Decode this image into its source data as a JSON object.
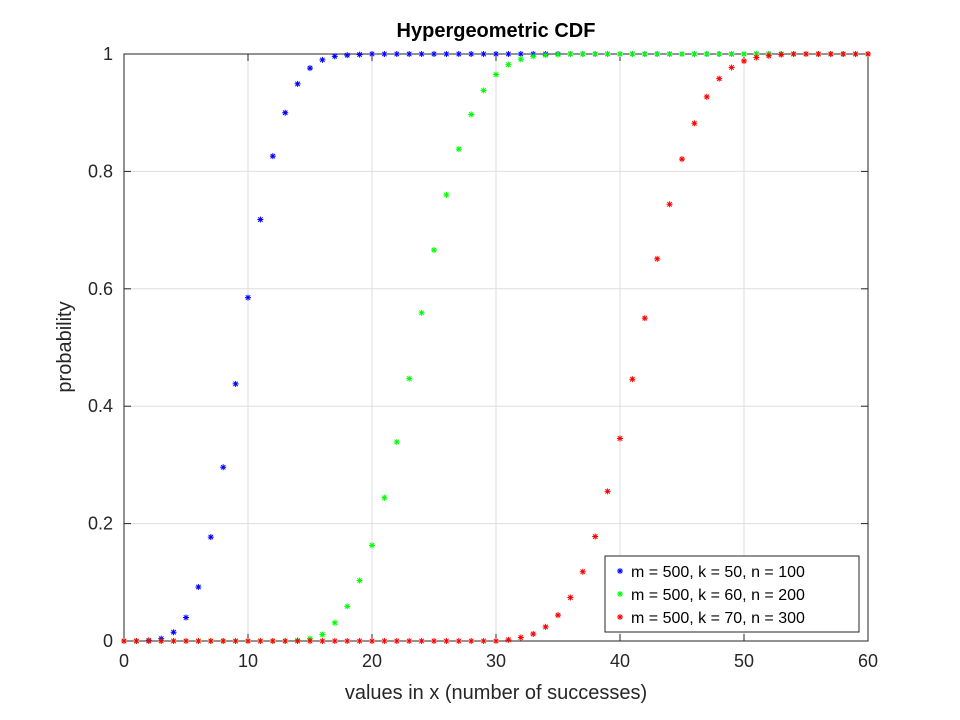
{
  "chart_data": {
    "type": "scatter",
    "title": "Hypergeometric CDF",
    "xlabel": "values in x (number of successes)",
    "ylabel": "probability",
    "xlim": [
      0,
      60
    ],
    "ylim": [
      0,
      1
    ],
    "xticks": [
      0,
      10,
      20,
      30,
      40,
      50,
      60
    ],
    "yticks": [
      0,
      0.2,
      0.4,
      0.6,
      0.8,
      1
    ],
    "ytick_labels": [
      "0",
      "0.2",
      "0.4",
      "0.6",
      "0.8",
      "1"
    ],
    "grid": true,
    "legend_position": "bottom-right",
    "marker": "*",
    "x": [
      0,
      1,
      2,
      3,
      4,
      5,
      6,
      7,
      8,
      9,
      10,
      11,
      12,
      13,
      14,
      15,
      16,
      17,
      18,
      19,
      20,
      21,
      22,
      23,
      24,
      25,
      26,
      27,
      28,
      29,
      30,
      31,
      32,
      33,
      34,
      35,
      36,
      37,
      38,
      39,
      40,
      41,
      42,
      43,
      44,
      45,
      46,
      47,
      48,
      49,
      50,
      51,
      52,
      53,
      54,
      55,
      56,
      57,
      58,
      59,
      60
    ],
    "series": [
      {
        "name": "m = 500, k = 50, n = 100",
        "color": "#0000ff",
        "values": [
          0,
          0,
          0.001,
          0.004,
          0.015,
          0.04,
          0.092,
          0.177,
          0.296,
          0.438,
          0.585,
          0.718,
          0.826,
          0.9,
          0.949,
          0.976,
          0.99,
          0.996,
          0.998,
          0.999,
          1,
          1,
          1,
          1,
          1,
          1,
          1,
          1,
          1,
          1,
          1,
          1,
          1,
          1,
          1,
          1,
          1,
          1,
          1,
          1,
          1,
          1,
          1,
          1,
          1,
          1,
          1,
          1,
          1,
          1,
          1,
          1,
          1,
          1,
          1,
          1,
          1,
          1,
          1,
          1,
          1
        ]
      },
      {
        "name": "m = 500, k = 60, n = 200",
        "color": "#00ff00",
        "values": [
          0,
          0,
          0,
          0,
          0,
          0,
          0,
          0,
          0,
          0,
          0,
          0,
          0,
          0,
          0.001,
          0.004,
          0.011,
          0.031,
          0.059,
          0.103,
          0.163,
          0.244,
          0.339,
          0.447,
          0.559,
          0.666,
          0.76,
          0.838,
          0.897,
          0.938,
          0.965,
          0.982,
          0.991,
          0.996,
          0.998,
          0.999,
          1,
          1,
          1,
          1,
          1,
          1,
          1,
          1,
          1,
          1,
          1,
          1,
          1,
          1,
          1,
          1,
          1,
          1,
          1,
          1,
          1,
          1,
          1,
          1,
          1
        ]
      },
      {
        "name": "m = 500, k = 70, n = 300",
        "color": "#ff0000",
        "values": [
          0,
          0,
          0,
          0,
          0,
          0,
          0,
          0,
          0,
          0,
          0,
          0,
          0,
          0,
          0,
          0,
          0,
          0,
          0,
          0,
          0,
          0,
          0,
          0,
          0,
          0,
          0,
          0,
          0,
          0,
          0,
          0.002,
          0.006,
          0.012,
          0.024,
          0.044,
          0.074,
          0.118,
          0.178,
          0.255,
          0.345,
          0.446,
          0.55,
          0.651,
          0.744,
          0.821,
          0.882,
          0.927,
          0.958,
          0.977,
          0.988,
          0.994,
          0.997,
          0.999,
          1,
          1,
          1,
          1,
          1,
          1,
          1
        ]
      }
    ]
  }
}
